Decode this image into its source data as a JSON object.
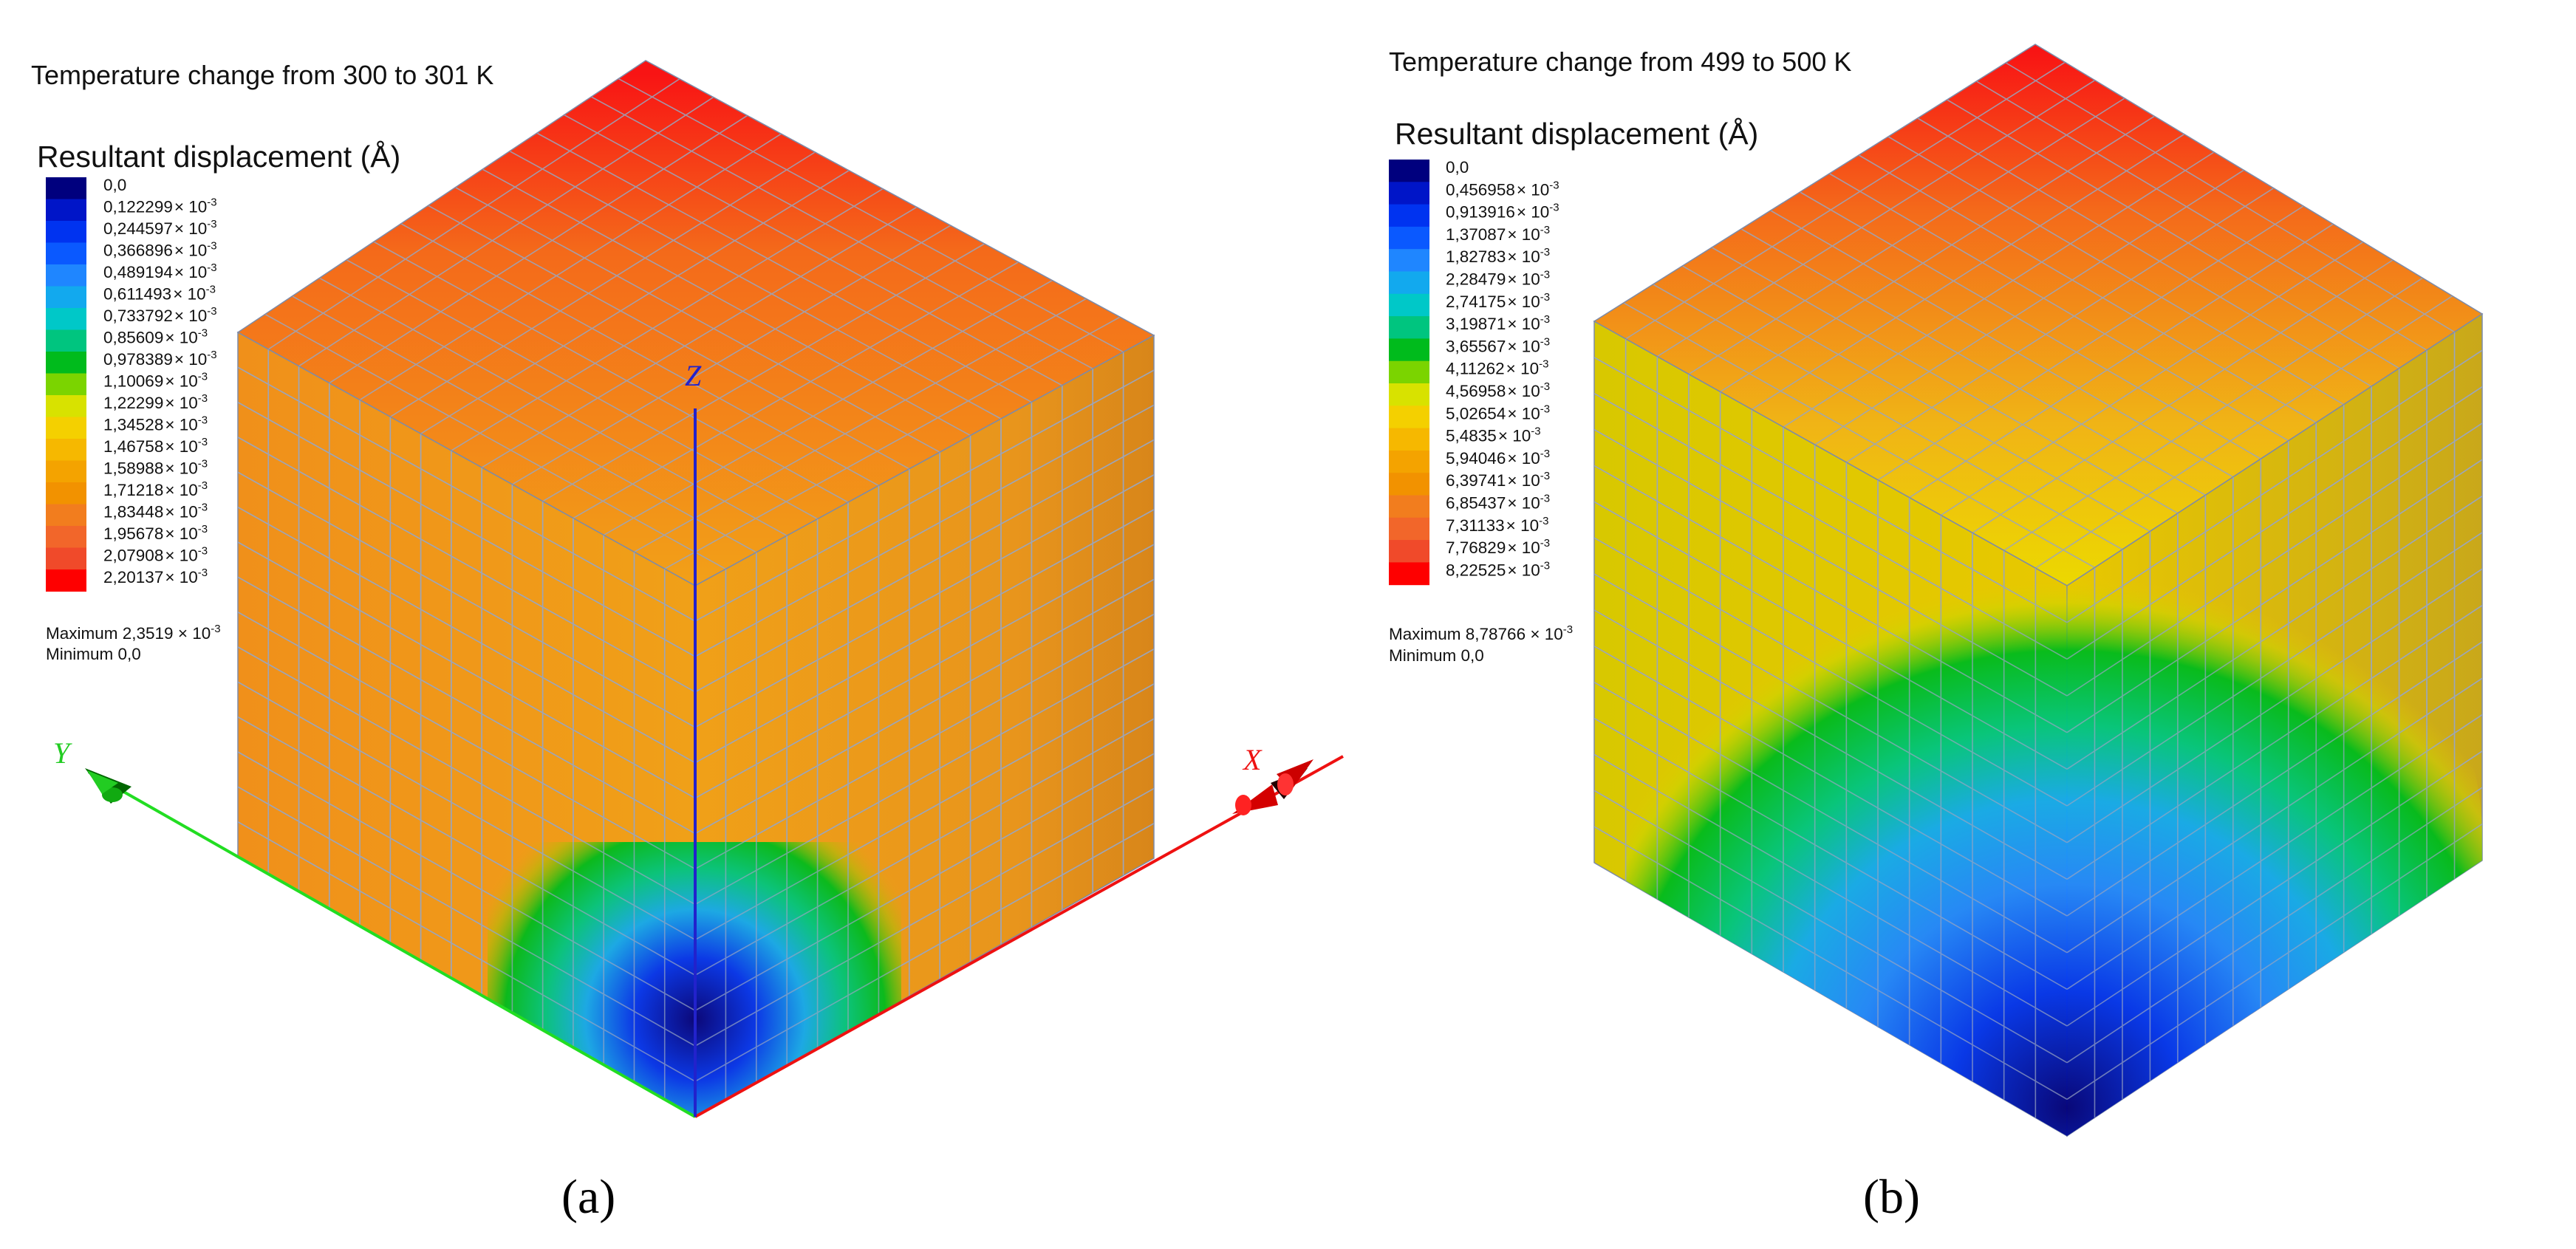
{
  "panels": [
    {
      "id": "a",
      "title": "Temperature change from 300 to 301 K",
      "legend_title": "Resultant displacement (Å)",
      "exponent": "-3",
      "legend_labels": [
        "0,0",
        "0,122299",
        "0,244597",
        "0,366896",
        "0,489194",
        "0,611493",
        "0,733792",
        "0,85609",
        "0,978389",
        "1,10069",
        "1,22299",
        "1,34528",
        "1,46758",
        "1,58988",
        "1,71218",
        "1,83448",
        "1,95678",
        "2,07908",
        "2,20137"
      ],
      "maximum_label": "Maximum 2,3519",
      "minimum_label": "Minimum 0,0",
      "subfigure_label": "(a)",
      "axes": {
        "x": "X",
        "y": "Y",
        "z": "Z"
      }
    },
    {
      "id": "b",
      "title": "Temperature change from 499 to 500 K",
      "legend_title": "Resultant displacement (Å)",
      "exponent": "-3",
      "legend_labels": [
        "0,0",
        "0,456958",
        "0,913916",
        "1,37087",
        "1,82783",
        "2,28479",
        "2,74175",
        "3,19871",
        "3,65567",
        "4,11262",
        "4,56958",
        "5,02654",
        "5,4835",
        "5,94046",
        "6,39741",
        "6,85437",
        "7,31133",
        "7,76829",
        "8,22525"
      ],
      "maximum_label": "Maximum 8,78766",
      "minimum_label": "Minimum 0,0",
      "subfigure_label": "(b)"
    }
  ],
  "colors": {
    "scale": [
      "#00007e",
      "#0015c8",
      "#0033f0",
      "#0a59ff",
      "#1f86ff",
      "#12a9ee",
      "#00c8c8",
      "#00c57f",
      "#00bb1c",
      "#7bd400",
      "#d8e200",
      "#f4d000",
      "#f6b800",
      "#f4a300",
      "#f29200",
      "#f27d1e",
      "#f2662a",
      "#f04a2a",
      "#fe0000"
    ],
    "axis_x": "#ee1111",
    "axis_y": "#22dd22",
    "axis_z": "#2222cc",
    "grid": "#9aa6bf"
  }
}
